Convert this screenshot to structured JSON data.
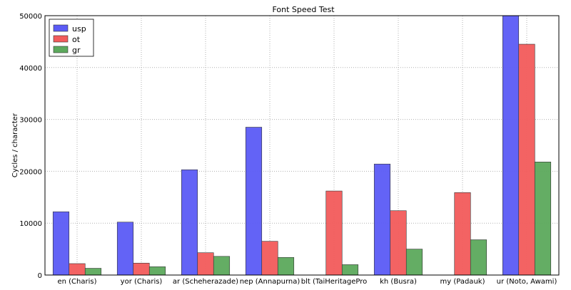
{
  "chart_data": {
    "type": "bar",
    "title": "Font Speed Test",
    "xlabel": "",
    "ylabel": "Cycles / character",
    "ylim": [
      0,
      50000
    ],
    "yticks": [
      0,
      10000,
      20000,
      30000,
      40000,
      50000
    ],
    "grid": true,
    "legend_position": "top-left",
    "categories": [
      "en (Charis)",
      "yor (Charis)",
      "ar (Scheherazade)",
      "nep (Annapurna)",
      "blt (TaiHeritagePro",
      "kh (Busra)",
      "my (Padauk)",
      "ur (Noto, Awami)"
    ],
    "series": [
      {
        "name": "usp",
        "color": "#5b5bf5",
        "values": [
          12200,
          10200,
          20300,
          28500,
          0,
          21400,
          0,
          52000
        ]
      },
      {
        "name": "ot",
        "color": "#f25b5b",
        "values": [
          2200,
          2300,
          4300,
          6500,
          16200,
          12400,
          15900,
          44500
        ]
      },
      {
        "name": "gr",
        "color": "#5ca95c",
        "values": [
          1300,
          1600,
          3600,
          3400,
          2000,
          5000,
          6800,
          21800
        ]
      }
    ]
  }
}
